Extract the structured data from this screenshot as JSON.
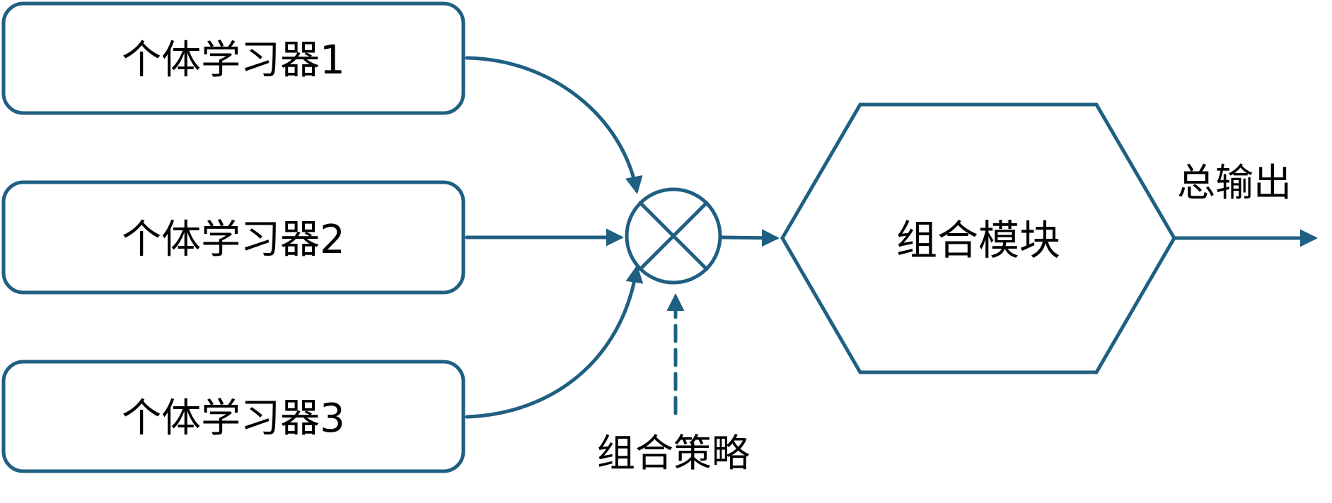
{
  "theme": {
    "stroke_color": "#1f5f82",
    "text_color": "#000000",
    "background": "#ffffff"
  },
  "learners": [
    {
      "label": "个体学习器1"
    },
    {
      "label": "个体学习器2"
    },
    {
      "label": "个体学习器3"
    }
  ],
  "combiner": {
    "icon": "circle-x-icon",
    "strategy_label": "组合策略"
  },
  "module": {
    "label": "组合模块"
  },
  "output": {
    "label": "总输出"
  }
}
